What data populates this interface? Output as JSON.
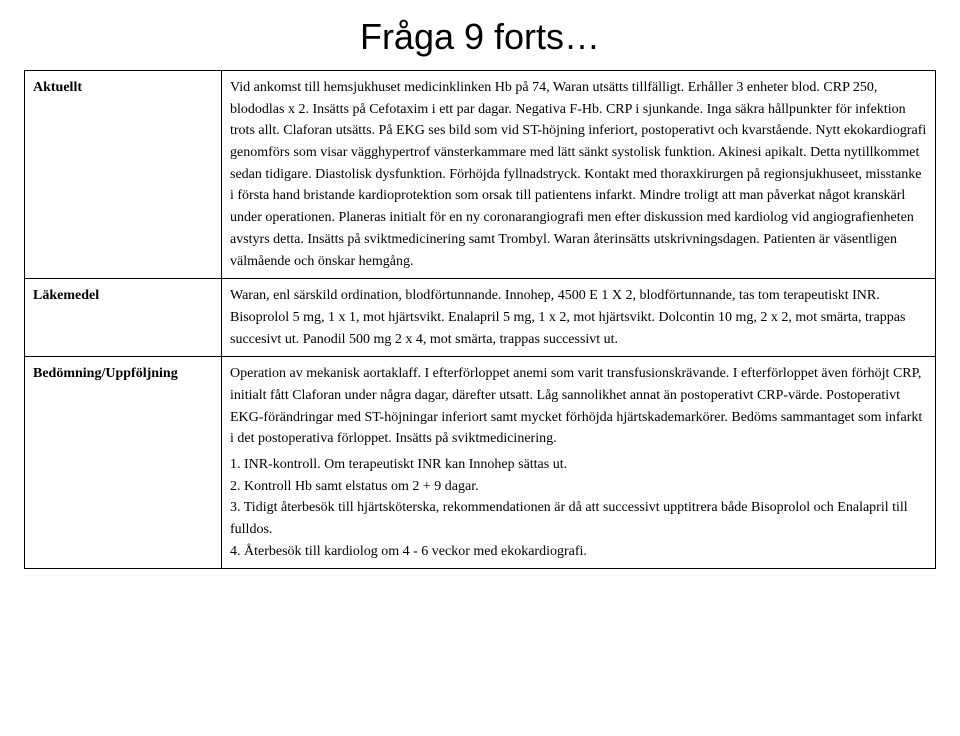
{
  "title": "Fråga 9 forts…",
  "rows": [
    {
      "label": "Aktuellt",
      "text": "Vid ankomst till hemsjukhuset medicinklinken Hb på 74, Waran utsätts tillfälligt. Erhåller 3 enheter blod. CRP 250, blododlas x 2. Insätts på Cefotaxim i ett par dagar. Negativa F-Hb. CRP i sjunkande. Inga säkra hållpunkter för infektion trots allt. Claforan utsätts. På EKG ses bild som vid ST-höjning inferiort, postoperativt och kvarstående. Nytt ekokardiografi genomförs som visar vägghypertrof vänsterkammare med lätt sänkt systolisk funktion. Akinesi apikalt. Detta nytillkommet sedan tidigare. Diastolisk dysfunktion. Förhöjda fyllnadstryck. Kontakt med thoraxkirurgen på regionsjukhuseet, misstanke i första hand bristande kardioprotektion som orsak till patientens infarkt. Mindre troligt att man påverkat något kranskärl under operationen. Planeras initialt för en ny coronarangiografi men efter diskussion med kardiolog vid angiografienheten avstyrs detta. Insätts på sviktmedicinering samt Trombyl. Waran återinsätts utskrivningsdagen. Patienten är väsentligen välmående och önskar hemgång."
    },
    {
      "label": "Läkemedel",
      "text": "Waran, enl särskild ordination, blodförtunnande. Innohep, 4500 E 1 X 2, blodförtunnande, tas tom terapeutiskt INR. Bisoprolol 5 mg, 1 x 1, mot hjärtsvikt. Enalapril 5 mg, 1 x 2, mot hjärtsvikt. Dolcontin 10 mg, 2 x 2, mot smärta, trappas succesivt ut. Panodil 500 mg 2 x 4, mot smärta, trappas successivt ut."
    },
    {
      "label": "Bedömning/Uppföljning",
      "text": "Operation av mekanisk aortaklaff. I efterförloppet anemi som varit transfusionskrävande. I efterförloppet även förhöjt CRP, initialt fått Claforan under några dagar, därefter utsatt. Låg sannolikhet annat än postoperativt CRP-värde. Postoperativt EKG-förändringar med ST-höjningar inferiort samt mycket förhöjda hjärtskademarkörer. Bedöms sammantaget som infarkt i det postoperativa förloppet. Insätts på sviktmedicinering.",
      "list": [
        "1. INR-kontroll. Om terapeutiskt INR kan Innohep sättas ut.",
        "2. Kontroll Hb samt elstatus om 2 + 9 dagar.",
        "3. Tidigt återbesök till hjärtsköterska, rekommendationen är då att successivt upptitrera både Bisoprolol och Enalapril till fulldos.",
        "4. Återbesök till kardiolog om 4 - 6 veckor med ekokardiografi."
      ]
    }
  ]
}
